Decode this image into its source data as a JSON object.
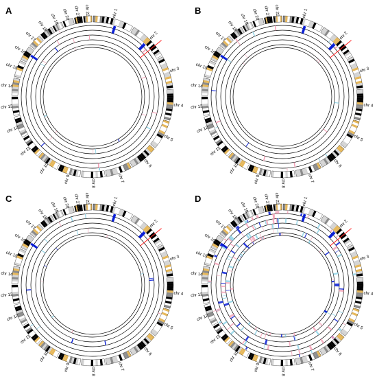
{
  "panels": [
    {
      "letter": "A",
      "density": "sparse"
    },
    {
      "letter": "B",
      "density": "sparse"
    },
    {
      "letter": "C",
      "density": "sparse"
    },
    {
      "letter": "D",
      "density": "dense"
    }
  ],
  "chromosomes": [
    {
      "label": "chr 1",
      "size": 249
    },
    {
      "label": "chr 2",
      "size": 242
    },
    {
      "label": "chr 3",
      "size": 198
    },
    {
      "label": "chr 4",
      "size": 190
    },
    {
      "label": "chr 5",
      "size": 181
    },
    {
      "label": "chr 6",
      "size": 171
    },
    {
      "label": "chr 7",
      "size": 159
    },
    {
      "label": "chr 8",
      "size": 145
    },
    {
      "label": "chr 9",
      "size": 138
    },
    {
      "label": "chr 10",
      "size": 134
    },
    {
      "label": "chr 11",
      "size": 135
    },
    {
      "label": "chr 12",
      "size": 133
    },
    {
      "label": "chr 13",
      "size": 114
    },
    {
      "label": "chr 14",
      "size": 107
    },
    {
      "label": "chr 15",
      "size": 102
    },
    {
      "label": "chr 16",
      "size": 90
    },
    {
      "label": "chr 17",
      "size": 83
    },
    {
      "label": "chr 18",
      "size": 80
    },
    {
      "label": "chr 19",
      "size": 59
    },
    {
      "label": "chr 20",
      "size": 64
    },
    {
      "label": "chr 21",
      "size": 47
    },
    {
      "label": "chr 22",
      "size": 51
    }
  ],
  "colors": {
    "ring": "#000000",
    "band_dark": "#000000",
    "band_gray": "#8c8c8c",
    "band_light": "#d4d4d4",
    "band_gold": "#e6b85c",
    "cnv_dark_blue": "#0a1fd6",
    "cnv_light_blue": "#8fd3e6",
    "cnv_pink": "#f4a3b8",
    "marker_red": "#ff2020"
  }
}
